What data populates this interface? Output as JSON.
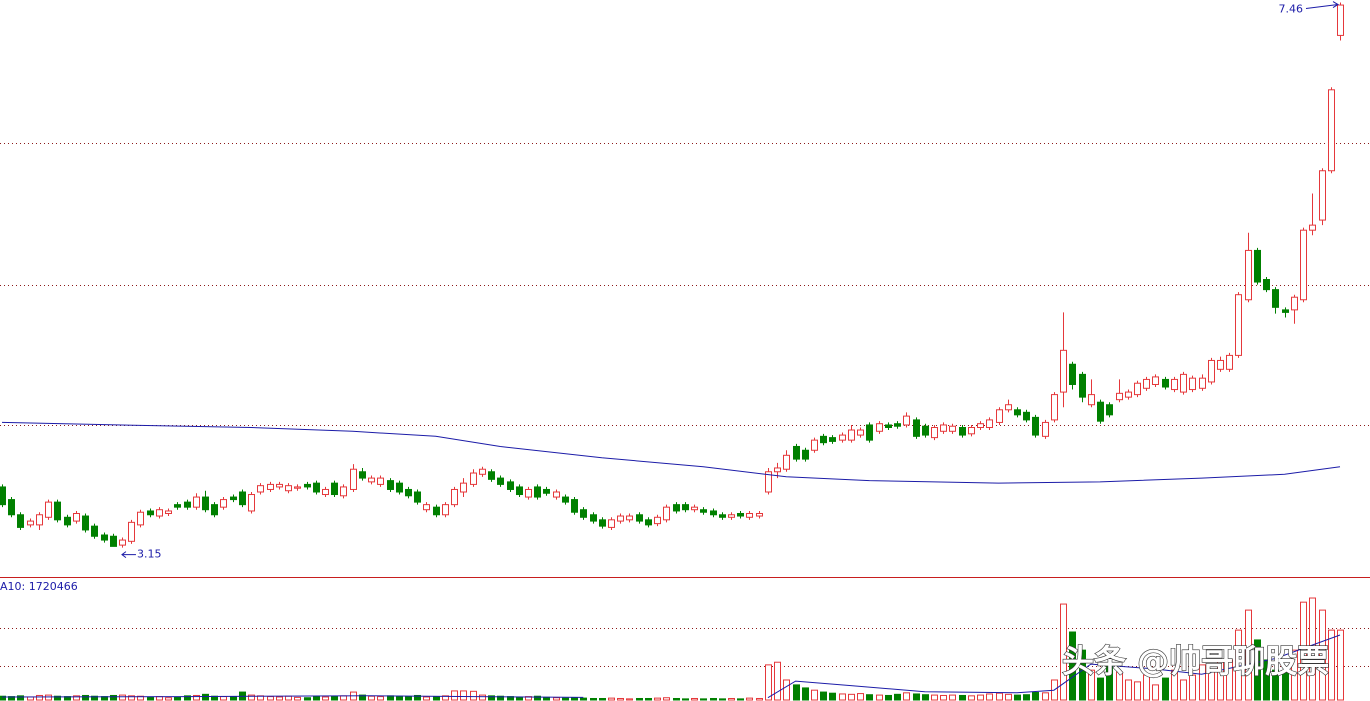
{
  "chart_data": {
    "type": "candlestick",
    "colors": {
      "up": "#e5383b",
      "down": "#008000",
      "ma": "#1c1ca8",
      "grid": "#8b1a1a",
      "separator": "#c81e1e"
    },
    "ylim": [
      2.91,
      7.48
    ],
    "ygrid": [
      4.12,
      5.23,
      6.35
    ],
    "ohlc": [
      [
        3.63,
        3.65,
        3.47,
        3.49
      ],
      [
        3.53,
        3.55,
        3.39,
        3.41
      ],
      [
        3.41,
        3.43,
        3.29,
        3.31
      ],
      [
        3.33,
        3.38,
        3.31,
        3.36
      ],
      [
        3.33,
        3.43,
        3.29,
        3.41
      ],
      [
        3.39,
        3.53,
        3.37,
        3.51
      ],
      [
        3.51,
        3.53,
        3.35,
        3.37
      ],
      [
        3.39,
        3.41,
        3.31,
        3.33
      ],
      [
        3.36,
        3.44,
        3.34,
        3.42
      ],
      [
        3.4,
        3.42,
        3.27,
        3.29
      ],
      [
        3.32,
        3.34,
        3.22,
        3.24
      ],
      [
        3.25,
        3.27,
        3.19,
        3.21
      ],
      [
        3.24,
        3.26,
        3.16,
        3.16
      ],
      [
        3.17,
        3.23,
        3.15,
        3.21
      ],
      [
        3.2,
        3.37,
        3.18,
        3.35
      ],
      [
        3.33,
        3.45,
        3.31,
        3.43
      ],
      [
        3.44,
        3.46,
        3.39,
        3.41
      ],
      [
        3.4,
        3.47,
        3.38,
        3.45
      ],
      [
        3.42,
        3.46,
        3.4,
        3.44
      ],
      [
        3.49,
        3.51,
        3.45,
        3.47
      ],
      [
        3.51,
        3.53,
        3.45,
        3.47
      ],
      [
        3.47,
        3.58,
        3.45,
        3.55
      ],
      [
        3.55,
        3.6,
        3.43,
        3.45
      ],
      [
        3.49,
        3.51,
        3.39,
        3.41
      ],
      [
        3.47,
        3.55,
        3.45,
        3.53
      ],
      [
        3.55,
        3.57,
        3.51,
        3.53
      ],
      [
        3.59,
        3.61,
        3.47,
        3.49
      ],
      [
        3.44,
        3.59,
        3.42,
        3.57
      ],
      [
        3.59,
        3.66,
        3.57,
        3.64
      ],
      [
        3.61,
        3.67,
        3.59,
        3.65
      ],
      [
        3.63,
        3.67,
        3.61,
        3.65
      ],
      [
        3.6,
        3.66,
        3.58,
        3.64
      ],
      [
        3.62,
        3.65,
        3.6,
        3.63
      ],
      [
        3.65,
        3.67,
        3.61,
        3.63
      ],
      [
        3.66,
        3.68,
        3.57,
        3.59
      ],
      [
        3.57,
        3.63,
        3.55,
        3.61
      ],
      [
        3.66,
        3.68,
        3.55,
        3.57
      ],
      [
        3.56,
        3.65,
        3.54,
        3.63
      ],
      [
        3.61,
        3.81,
        3.59,
        3.77
      ],
      [
        3.75,
        3.78,
        3.68,
        3.7
      ],
      [
        3.67,
        3.72,
        3.65,
        3.7
      ],
      [
        3.65,
        3.72,
        3.63,
        3.7
      ],
      [
        3.68,
        3.7,
        3.59,
        3.61
      ],
      [
        3.66,
        3.68,
        3.57,
        3.59
      ],
      [
        3.61,
        3.63,
        3.54,
        3.56
      ],
      [
        3.59,
        3.61,
        3.49,
        3.51
      ],
      [
        3.45,
        3.51,
        3.43,
        3.49
      ],
      [
        3.47,
        3.49,
        3.39,
        3.41
      ],
      [
        3.41,
        3.51,
        3.39,
        3.49
      ],
      [
        3.49,
        3.63,
        3.47,
        3.61
      ],
      [
        3.59,
        3.7,
        3.55,
        3.66
      ],
      [
        3.65,
        3.77,
        3.63,
        3.74
      ],
      [
        3.73,
        3.79,
        3.71,
        3.77
      ],
      [
        3.75,
        3.77,
        3.67,
        3.69
      ],
      [
        3.7,
        3.72,
        3.63,
        3.65
      ],
      [
        3.67,
        3.69,
        3.59,
        3.61
      ],
      [
        3.63,
        3.65,
        3.55,
        3.57
      ],
      [
        3.55,
        3.63,
        3.53,
        3.61
      ],
      [
        3.63,
        3.65,
        3.53,
        3.55
      ],
      [
        3.61,
        3.63,
        3.56,
        3.58
      ],
      [
        3.55,
        3.61,
        3.53,
        3.59
      ],
      [
        3.55,
        3.57,
        3.49,
        3.51
      ],
      [
        3.53,
        3.55,
        3.41,
        3.43
      ],
      [
        3.45,
        3.47,
        3.37,
        3.39
      ],
      [
        3.41,
        3.43,
        3.34,
        3.36
      ],
      [
        3.37,
        3.39,
        3.3,
        3.32
      ],
      [
        3.31,
        3.39,
        3.29,
        3.37
      ],
      [
        3.36,
        3.42,
        3.34,
        3.4
      ],
      [
        3.37,
        3.42,
        3.35,
        3.4
      ],
      [
        3.41,
        3.43,
        3.34,
        3.36
      ],
      [
        3.37,
        3.39,
        3.31,
        3.33
      ],
      [
        3.34,
        3.41,
        3.32,
        3.39
      ],
      [
        3.37,
        3.49,
        3.35,
        3.47
      ],
      [
        3.49,
        3.51,
        3.42,
        3.44
      ],
      [
        3.49,
        3.51,
        3.43,
        3.45
      ],
      [
        3.45,
        3.49,
        3.43,
        3.47
      ],
      [
        3.45,
        3.47,
        3.41,
        3.43
      ],
      [
        3.44,
        3.46,
        3.39,
        3.41
      ],
      [
        3.41,
        3.43,
        3.37,
        3.39
      ],
      [
        3.39,
        3.43,
        3.37,
        3.41
      ],
      [
        3.42,
        3.44,
        3.38,
        3.4
      ],
      [
        3.39,
        3.44,
        3.37,
        3.42
      ],
      [
        3.4,
        3.44,
        3.38,
        3.42
      ],
      [
        3.59,
        3.78,
        3.57,
        3.75
      ],
      [
        3.75,
        3.82,
        3.7,
        3.78
      ],
      [
        3.77,
        3.92,
        3.75,
        3.88
      ],
      [
        3.95,
        3.97,
        3.83,
        3.85
      ],
      [
        3.92,
        3.94,
        3.83,
        3.85
      ],
      [
        3.92,
        4.02,
        3.9,
        4.0
      ],
      [
        4.03,
        4.05,
        3.96,
        3.98
      ],
      [
        4.02,
        4.04,
        3.97,
        3.99
      ],
      [
        4.0,
        4.06,
        3.98,
        4.04
      ],
      [
        4.0,
        4.12,
        3.98,
        4.08
      ],
      [
        4.04,
        4.1,
        4.02,
        4.08
      ],
      [
        4.12,
        4.14,
        3.98,
        4.0
      ],
      [
        4.07,
        4.15,
        4.05,
        4.13
      ],
      [
        4.12,
        4.14,
        4.08,
        4.1
      ],
      [
        4.13,
        4.15,
        4.09,
        4.11
      ],
      [
        4.12,
        4.22,
        4.1,
        4.19
      ],
      [
        4.16,
        4.18,
        4.01,
        4.03
      ],
      [
        4.11,
        4.13,
        4.02,
        4.04
      ],
      [
        4.02,
        4.12,
        4.0,
        4.1
      ],
      [
        4.07,
        4.14,
        4.05,
        4.12
      ],
      [
        4.07,
        4.13,
        4.05,
        4.11
      ],
      [
        4.1,
        4.12,
        4.02,
        4.04
      ],
      [
        4.05,
        4.12,
        4.03,
        4.1
      ],
      [
        4.1,
        4.15,
        4.08,
        4.13
      ],
      [
        4.1,
        4.18,
        4.08,
        4.16
      ],
      [
        4.14,
        4.26,
        4.12,
        4.24
      ],
      [
        4.24,
        4.32,
        4.22,
        4.28
      ],
      [
        4.24,
        4.26,
        4.18,
        4.2
      ],
      [
        4.22,
        4.24,
        4.14,
        4.16
      ],
      [
        4.18,
        4.2,
        4.02,
        4.04
      ],
      [
        4.03,
        4.16,
        4.01,
        4.14
      ],
      [
        4.16,
        4.38,
        4.14,
        4.36
      ],
      [
        4.38,
        5.01,
        4.26,
        4.71
      ],
      [
        4.6,
        4.62,
        4.4,
        4.44
      ],
      [
        4.52,
        4.54,
        4.3,
        4.34
      ],
      [
        4.28,
        4.48,
        4.26,
        4.36
      ],
      [
        4.3,
        4.32,
        4.13,
        4.15
      ],
      [
        4.28,
        4.3,
        4.18,
        4.2
      ],
      [
        4.32,
        4.48,
        4.3,
        4.37
      ],
      [
        4.34,
        4.4,
        4.32,
        4.38
      ],
      [
        4.36,
        4.47,
        4.34,
        4.45
      ],
      [
        4.41,
        4.5,
        4.39,
        4.48
      ],
      [
        4.44,
        4.52,
        4.42,
        4.5
      ],
      [
        4.48,
        4.5,
        4.4,
        4.42
      ],
      [
        4.4,
        4.5,
        4.38,
        4.48
      ],
      [
        4.38,
        4.54,
        4.36,
        4.52
      ],
      [
        4.4,
        4.51,
        4.38,
        4.49
      ],
      [
        4.41,
        4.52,
        4.39,
        4.49
      ],
      [
        4.46,
        4.65,
        4.44,
        4.63
      ],
      [
        4.56,
        4.66,
        4.54,
        4.63
      ],
      [
        4.56,
        4.69,
        4.54,
        4.67
      ],
      [
        4.67,
        5.17,
        4.65,
        5.15
      ],
      [
        5.11,
        5.64,
        5.09,
        5.5
      ],
      [
        5.5,
        5.52,
        5.23,
        5.25
      ],
      [
        5.27,
        5.29,
        5.17,
        5.19
      ],
      [
        5.19,
        5.21,
        5.0,
        5.05
      ],
      [
        5.03,
        5.05,
        4.97,
        5.01
      ],
      [
        5.03,
        5.15,
        4.92,
        5.13
      ],
      [
        5.11,
        5.68,
        5.09,
        5.66
      ],
      [
        5.66,
        5.95,
        5.62,
        5.7
      ],
      [
        5.74,
        6.15,
        5.7,
        6.13
      ],
      [
        6.13,
        6.79,
        6.11,
        6.77
      ],
      [
        7.2,
        7.46,
        7.16,
        7.44
      ]
    ],
    "ma": {
      "x": [
        0,
        13,
        27,
        38,
        47,
        54,
        65,
        76,
        85,
        94,
        108,
        119,
        130,
        139,
        145
      ],
      "values": [
        4.14,
        4.12,
        4.1,
        4.07,
        4.03,
        3.95,
        3.86,
        3.79,
        3.71,
        3.68,
        3.66,
        3.67,
        3.7,
        3.73,
        3.79
      ]
    },
    "high_label": 7.46,
    "low_label": 3.15,
    "volume": {
      "ylim": [
        0,
        3230000
      ],
      "ygrid": [
        900000,
        1910000
      ],
      "label": "A10: 1720466",
      "values": [
        100000,
        90000,
        110000,
        80000,
        120000,
        130000,
        100000,
        90000,
        110000,
        120000,
        100000,
        90000,
        120000,
        130000,
        110000,
        100000,
        80000,
        90000,
        60000,
        70000,
        110000,
        120000,
        150000,
        100000,
        90000,
        80000,
        210000,
        130000,
        110000,
        90000,
        80000,
        100000,
        70000,
        60000,
        90000,
        80000,
        100000,
        110000,
        210000,
        130000,
        100000,
        90000,
        110000,
        100000,
        90000,
        120000,
        80000,
        90000,
        110000,
        240000,
        240000,
        230000,
        130000,
        110000,
        100000,
        90000,
        80000,
        90000,
        100000,
        70000,
        60000,
        50000,
        60000,
        50000,
        40000,
        40000,
        50000,
        40000,
        30000,
        40000,
        40000,
        50000,
        60000,
        40000,
        30000,
        40000,
        30000,
        40000,
        30000,
        40000,
        30000,
        50000,
        40000,
        930000,
        1000000,
        530000,
        400000,
        320000,
        260000,
        210000,
        180000,
        160000,
        150000,
        170000,
        140000,
        130000,
        120000,
        150000,
        190000,
        160000,
        140000,
        130000,
        120000,
        130000,
        120000,
        110000,
        130000,
        160000,
        180000,
        150000,
        130000,
        140000,
        200000,
        190000,
        530000,
        2540000,
        1800000,
        1320000,
        790000,
        580000,
        930000,
        740000,
        530000,
        480000,
        660000,
        400000,
        580000,
        790000,
        530000,
        660000,
        930000,
        790000,
        1060000,
        1060000,
        1850000,
        2380000,
        1590000,
        1060000,
        790000,
        740000,
        1320000,
        2590000,
        2700000,
        2380000,
        1850000,
        1850000
      ],
      "ma": {
        "x": [
          0,
          20,
          40,
          63,
          64,
          83,
          86,
          92,
          100,
          110,
          114,
          118,
          125,
          130,
          138,
          145
        ],
        "values": [
          80000,
          90000,
          110000,
          70000,
          null,
          60000,
          500000,
          380000,
          220000,
          190000,
          260000,
          950000,
          820000,
          680000,
          1100000,
          1720466
        ]
      }
    },
    "watermark": "头条 @帅哥聊股票"
  }
}
